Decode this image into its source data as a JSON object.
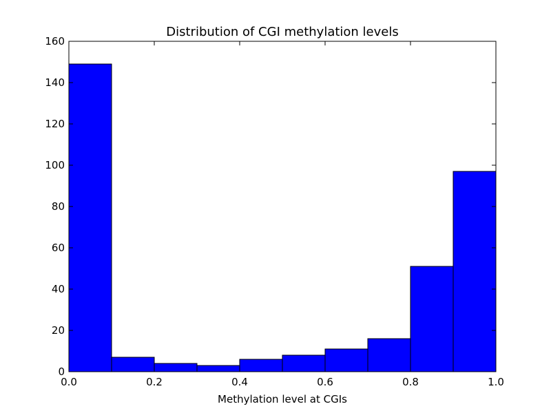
{
  "chart_data": {
    "type": "bar",
    "title": "Distribution of CGI methylation levels",
    "xlabel": "Methylation level at CGIs",
    "ylabel": "",
    "bin_edges": [
      0.0,
      0.1,
      0.2,
      0.3,
      0.4,
      0.5,
      0.6,
      0.7,
      0.8,
      0.9,
      1.0
    ],
    "values": [
      149,
      7,
      4,
      3,
      6,
      8,
      11,
      16,
      51,
      97
    ],
    "xlim": [
      0.0,
      1.0
    ],
    "ylim": [
      0,
      160
    ],
    "xticks": [
      "0.0",
      "0.2",
      "0.4",
      "0.6",
      "0.8",
      "1.0"
    ],
    "yticks": [
      "0",
      "20",
      "40",
      "60",
      "80",
      "100",
      "120",
      "140",
      "160"
    ],
    "bar_color": "#0000ff",
    "grid": false,
    "legend": false
  }
}
